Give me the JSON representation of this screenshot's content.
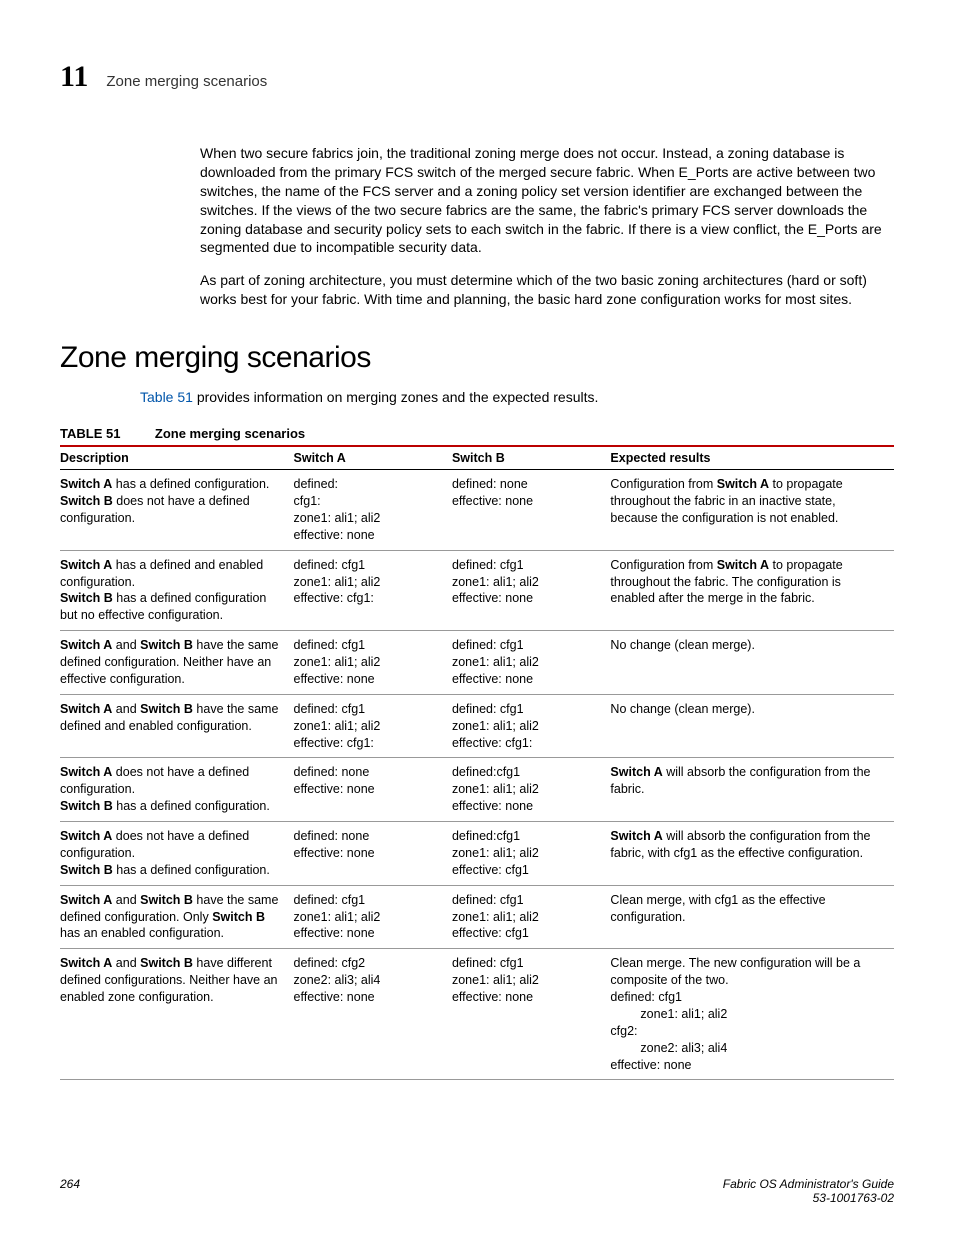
{
  "header": {
    "chapter_number": "11",
    "title": "Zone merging scenarios"
  },
  "paragraphs": {
    "p1": "When two secure fabrics join, the traditional zoning merge does not occur. Instead, a zoning database is downloaded from the primary FCS switch of the merged secure fabric. When E_Ports are active between two switches, the name of the FCS server and a zoning policy set version identifier are exchanged between the switches. If the views of the two secure fabrics are the same, the fabric's primary FCS server downloads the zoning database and security policy sets to each switch in the fabric. If there is a view conflict, the E_Ports are segmented due to incompatible security data.",
    "p2": "As part of zoning architecture, you must determine which of the two basic zoning architectures (hard or soft) works best for your fabric. With time and planning, the basic hard zone configuration works for most sites."
  },
  "section_heading": "Zone merging scenarios",
  "intro": {
    "link": "Table 51",
    "rest": " provides information on merging zones and the expected results."
  },
  "table": {
    "label": "TABLE 51",
    "caption": "Zone merging scenarios",
    "headers": {
      "desc": "Description",
      "a": "Switch A",
      "b": "Switch B",
      "exp": "Expected results"
    },
    "rows": [
      {
        "desc_html": "<span class='b'>Switch A</span> has a defined configuration. <span class='b'>Switch B</span> does not have a defined configuration.",
        "a": "defined:\ncfg1:\nzone1: ali1; ali2\neffective: none",
        "b": "defined: none\neffective: none",
        "exp_html": "Configuration from <span class='b'>Switch A</span> to propagate throughout the fabric in an inactive state, because the configuration is not enabled."
      },
      {
        "desc_html": "<span class='b'>Switch A</span> has a defined and enabled configuration.<br><span class='b'>Switch B</span> has a defined configuration but no effective configuration.",
        "a": "defined: cfg1\nzone1: ali1; ali2\neffective: cfg1:",
        "b": "defined: cfg1\nzone1: ali1; ali2\neffective: none",
        "exp_html": "Configuration from <span class='b'>Switch A</span> to propagate throughout the fabric. The configuration is enabled after the merge in the fabric."
      },
      {
        "desc_html": "<span class='b'>Switch A</span> and <span class='b'>Switch B</span> have the same defined configuration. Neither have an effective configuration.",
        "a": "defined: cfg1\nzone1: ali1; ali2\neffective: none",
        "b": "defined: cfg1\nzone1: ali1; ali2\neffective: none",
        "exp_html": "No change (clean merge)."
      },
      {
        "desc_html": "<span class='b'>Switch A</span> and <span class='b'>Switch B</span> have the same defined and enabled configuration.",
        "a": "defined: cfg1\nzone1: ali1; ali2\neffective: cfg1:",
        "b": "defined: cfg1\nzone1: ali1; ali2\neffective: cfg1:",
        "exp_html": "No change (clean merge)."
      },
      {
        "desc_html": "<span class='b'>Switch A</span> does not have a defined configuration.<br><span class='b'>Switch B</span> has a defined configuration.",
        "a": "defined: none\neffective: none",
        "b": "defined:cfg1\nzone1: ali1; ali2\neffective: none",
        "exp_html": "<span class='b'>Switch A</span> will absorb the configuration from the fabric."
      },
      {
        "desc_html": "<span class='b'>Switch A</span> does not have a defined configuration.<br><span class='b'>Switch B</span> has a defined configuration.",
        "a": "defined: none\neffective: none",
        "b": "defined:cfg1\nzone1: ali1; ali2\neffective: cfg1",
        "exp_html": "<span class='b'>Switch A</span> will absorb the configuration from the fabric, with cfg1 as the effective configuration."
      },
      {
        "desc_html": "<span class='b'>Switch A</span> and <span class='b'>Switch B</span> have the same defined configuration. Only <span class='b'>Switch B</span> has an enabled configuration.",
        "a": "defined: cfg1\nzone1: ali1; ali2\neffective: none",
        "b": "defined: cfg1\nzone1: ali1; ali2\neffective: cfg1",
        "exp_html": "Clean merge, with cfg1 as the effective configuration."
      },
      {
        "desc_html": "<span class='b'>Switch A</span> and <span class='b'>Switch B</span> have different defined configurations. Neither have an enabled zone configuration.",
        "a": "defined: cfg2\nzone2: ali3; ali4\neffective: none",
        "b": "defined: cfg1\nzone1: ali1; ali2\neffective: none",
        "exp_html": "Clean merge. The new configuration will be a composite of the two.<br>defined: cfg1<br><span class='indent1'>zone1: ali1; ali2</span>cfg2:<br><span class='indent1'>zone2: ali3; ali4</span>effective: none"
      }
    ]
  },
  "footer": {
    "page": "264",
    "doc_title": "Fabric OS Administrator's Guide",
    "doc_id": "53-1001763-02"
  }
}
